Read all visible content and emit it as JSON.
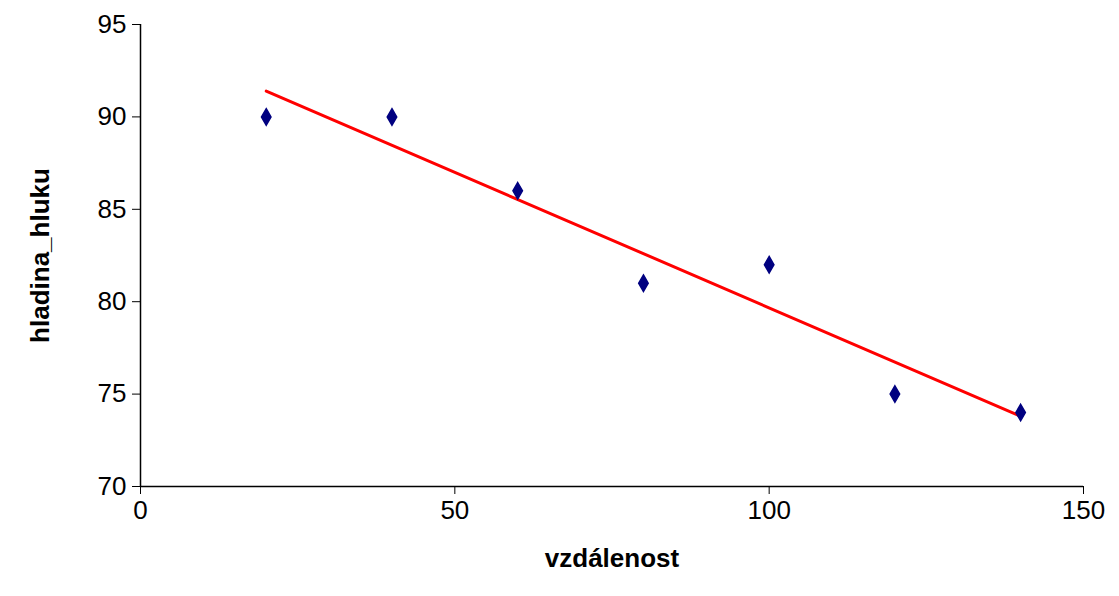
{
  "chart_data": {
    "type": "scatter",
    "x_label": "vzdálenost",
    "y_label": "hladina_hluku",
    "x": [
      20,
      40,
      60,
      80,
      100,
      120,
      140
    ],
    "values": [
      90,
      90,
      86,
      81,
      82,
      75,
      74
    ],
    "color": "#000080",
    "marker": "diamond",
    "trend_line": {
      "type": "line",
      "x": [
        20,
        140
      ],
      "values": [
        91.4,
        73.8
      ],
      "color": "#ff0000"
    },
    "xlim": [
      0,
      150
    ],
    "xticks": [
      0,
      50,
      100,
      150
    ],
    "ylim": [
      70,
      95
    ],
    "yticks": [
      70,
      75,
      80,
      85,
      90,
      95
    ],
    "grid": false
  }
}
